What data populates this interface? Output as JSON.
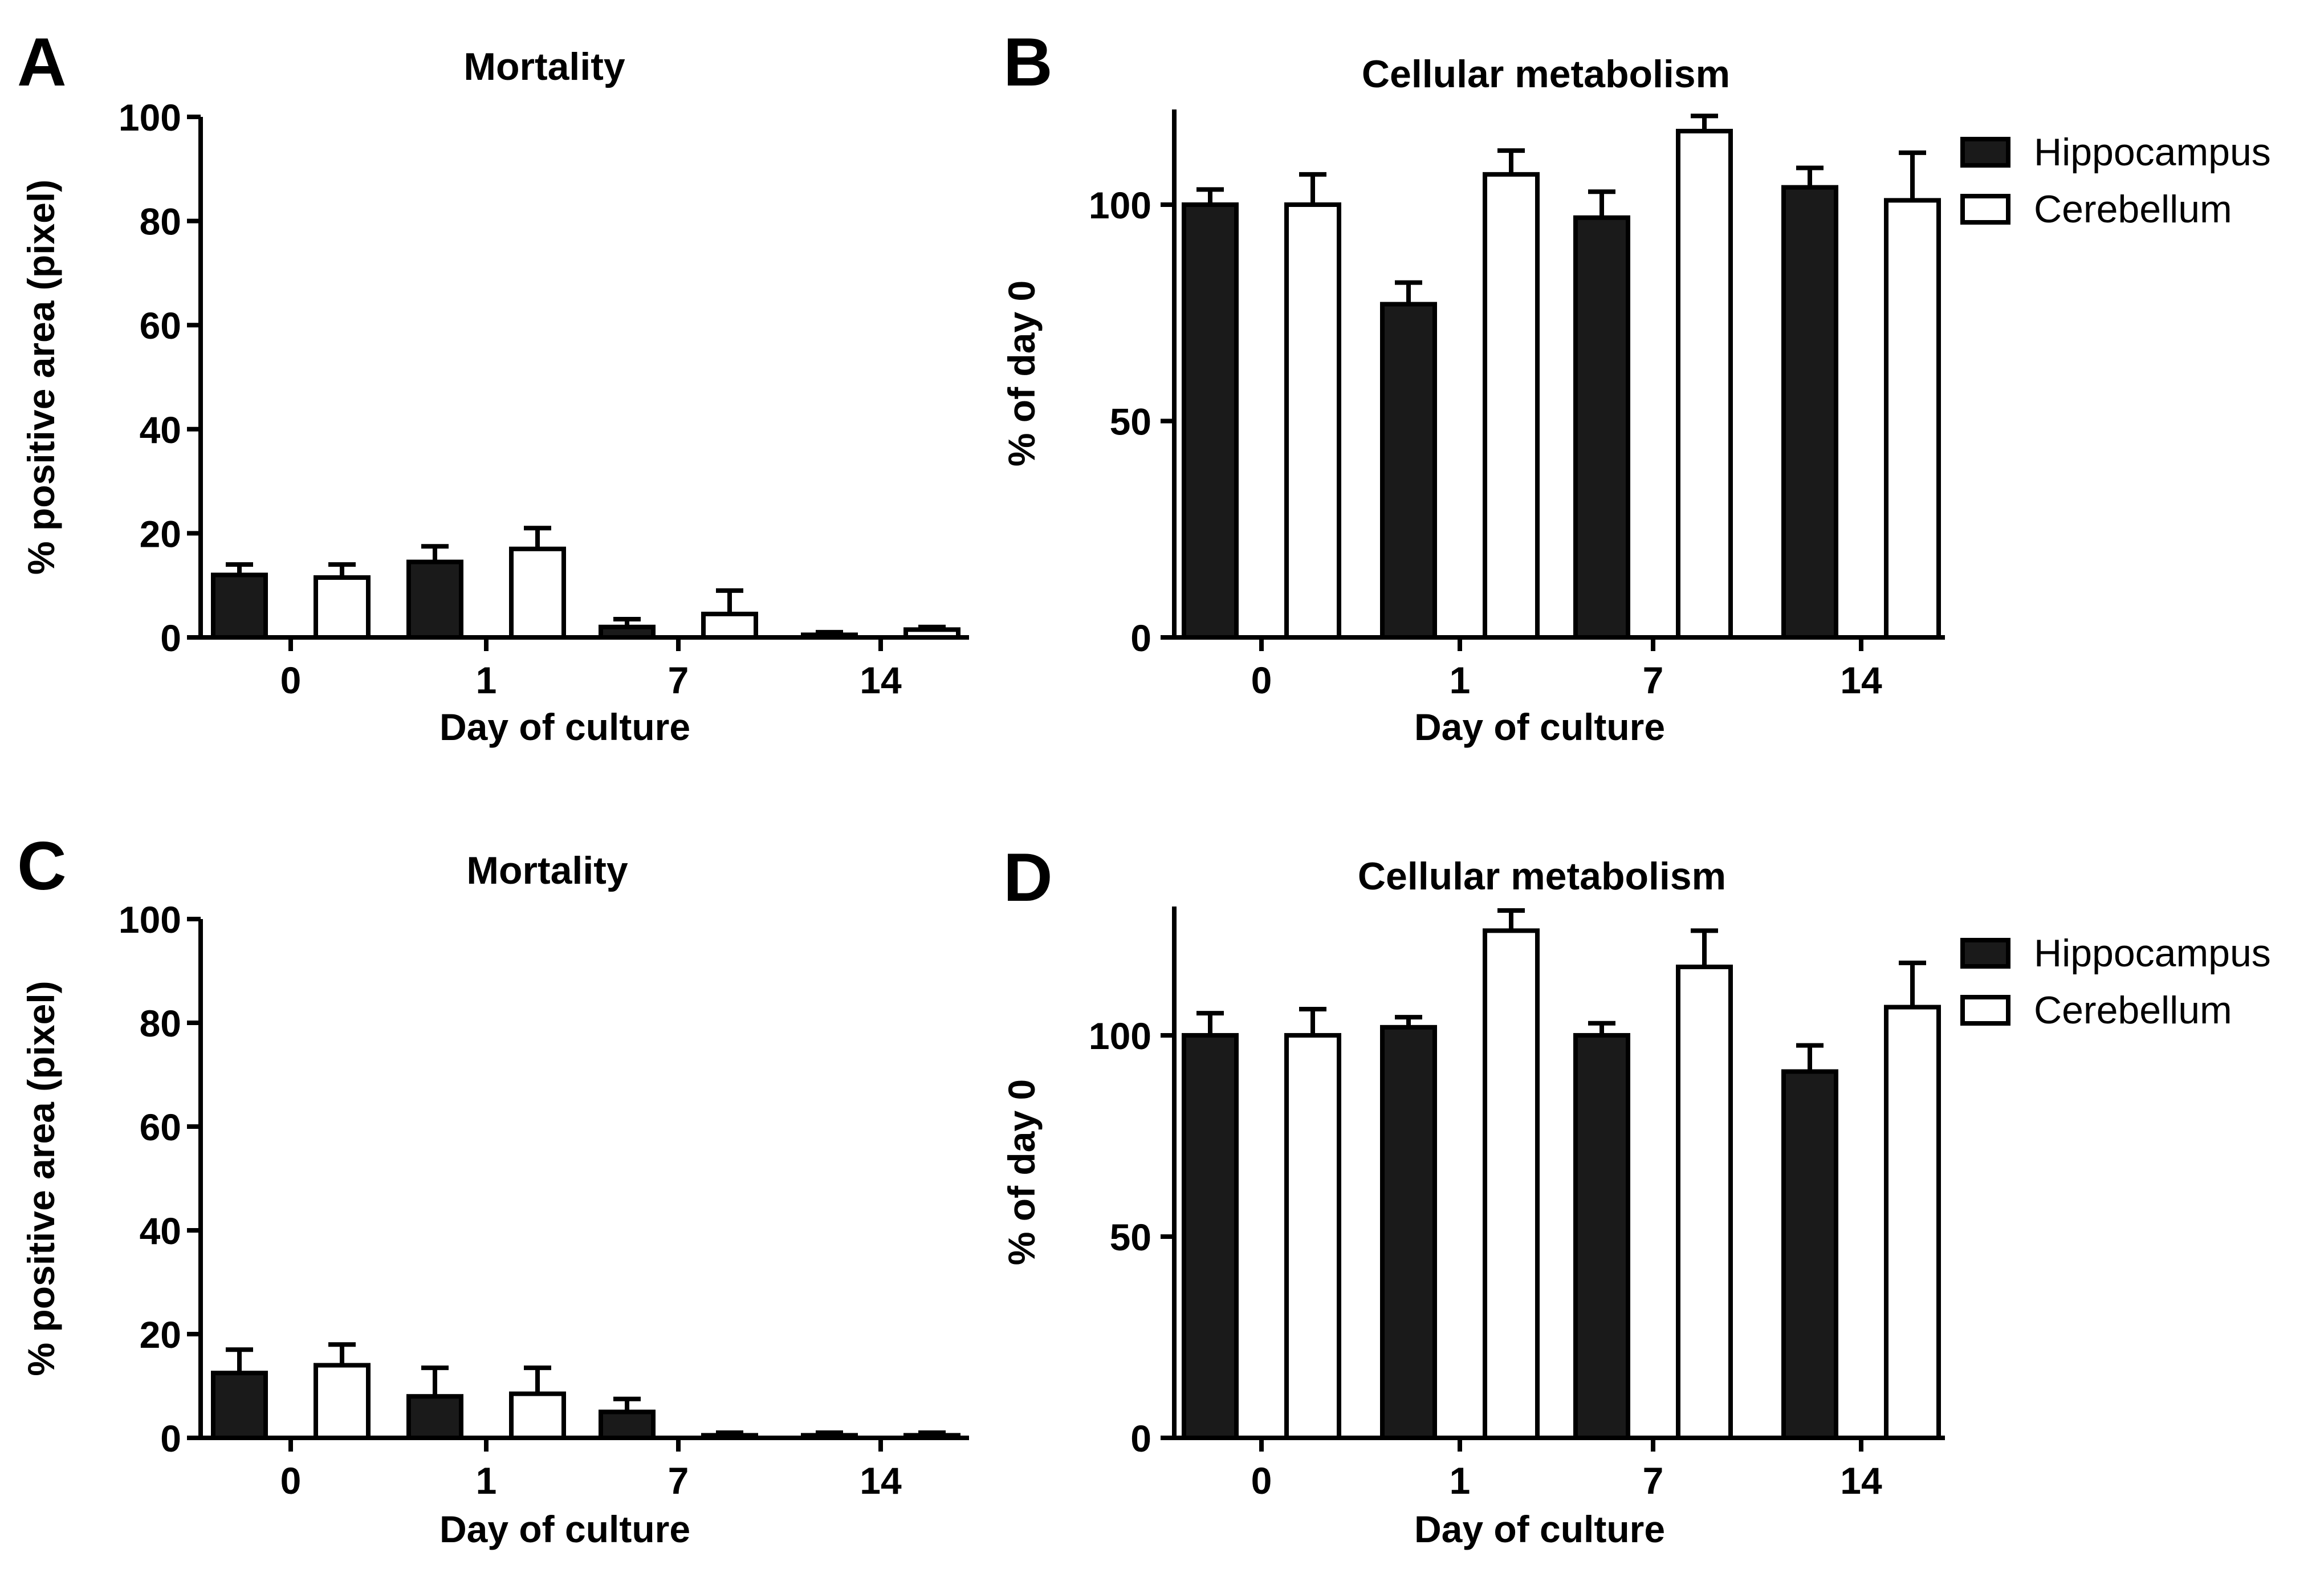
{
  "colors": {
    "hippocampus": "#1a1a1a",
    "cerebellum": "#ffffff",
    "stroke": "#000000"
  },
  "chart_data": [
    {
      "panel": "A",
      "type": "bar",
      "title": "Mortality",
      "xlabel": "Day of culture",
      "ylabel": "% positive area (pixel)",
      "categories": [
        "0",
        "1",
        "7",
        "14"
      ],
      "ylim": [
        0,
        100
      ],
      "yticks": [
        0,
        20,
        40,
        60,
        80,
        100
      ],
      "grid": false,
      "legend": null,
      "series": [
        {
          "key": "hippocampus",
          "values": [
            12,
            14.5,
            2,
            0.5
          ],
          "errors": [
            2,
            3,
            1.5,
            0.5
          ]
        },
        {
          "key": "cerebellum",
          "values": [
            11.5,
            17,
            4.5,
            1.5
          ],
          "errors": [
            2.5,
            4,
            4.5,
            0.5
          ]
        }
      ]
    },
    {
      "panel": "B",
      "type": "bar",
      "title": "Cellular metabolism",
      "xlabel": "Day of culture",
      "ylabel": "% of day 0",
      "categories": [
        "0",
        "1",
        "7",
        "14"
      ],
      "ylim": [
        0,
        122
      ],
      "yticks": [
        0,
        50,
        100
      ],
      "grid": false,
      "legend": "right",
      "series": [
        {
          "key": "hippocampus",
          "name": "Hippocampus",
          "values": [
            100,
            77,
            97,
            104
          ],
          "errors": [
            3.5,
            5,
            6,
            4.5
          ]
        },
        {
          "key": "cerebellum",
          "name": "Cerebellum",
          "values": [
            100,
            107,
            117,
            101
          ],
          "errors": [
            7,
            5.5,
            3.5,
            11
          ]
        }
      ]
    },
    {
      "panel": "C",
      "type": "bar",
      "title": "Mortality",
      "xlabel": "Day of culture",
      "ylabel": "% positive area (pixel)",
      "categories": [
        "0",
        "1",
        "7",
        "14"
      ],
      "ylim": [
        0,
        100
      ],
      "yticks": [
        0,
        20,
        40,
        60,
        80,
        100
      ],
      "grid": false,
      "legend": null,
      "series": [
        {
          "key": "hippocampus",
          "values": [
            12.5,
            8,
            5,
            0.5
          ],
          "errors": [
            4.5,
            5.5,
            2.5,
            0.5
          ]
        },
        {
          "key": "cerebellum",
          "values": [
            14,
            8.5,
            0.5,
            0.5
          ],
          "errors": [
            4,
            5,
            0.5,
            0.5
          ]
        }
      ]
    },
    {
      "panel": "D",
      "type": "bar",
      "title": "Cellular metabolism",
      "xlabel": "Day of culture",
      "ylabel": "% of day 0",
      "categories": [
        "0",
        "1",
        "7",
        "14"
      ],
      "ylim": [
        0,
        132
      ],
      "yticks": [
        0,
        50,
        100
      ],
      "grid": false,
      "legend": "right",
      "series": [
        {
          "key": "hippocampus",
          "name": "Hippocampus",
          "values": [
            100,
            102,
            100,
            91
          ],
          "errors": [
            5.5,
            2.5,
            3,
            6.5
          ]
        },
        {
          "key": "cerebellum",
          "name": "Cerebellum",
          "values": [
            100,
            126,
            117,
            107
          ],
          "errors": [
            6.5,
            5,
            9,
            11
          ]
        }
      ]
    }
  ]
}
